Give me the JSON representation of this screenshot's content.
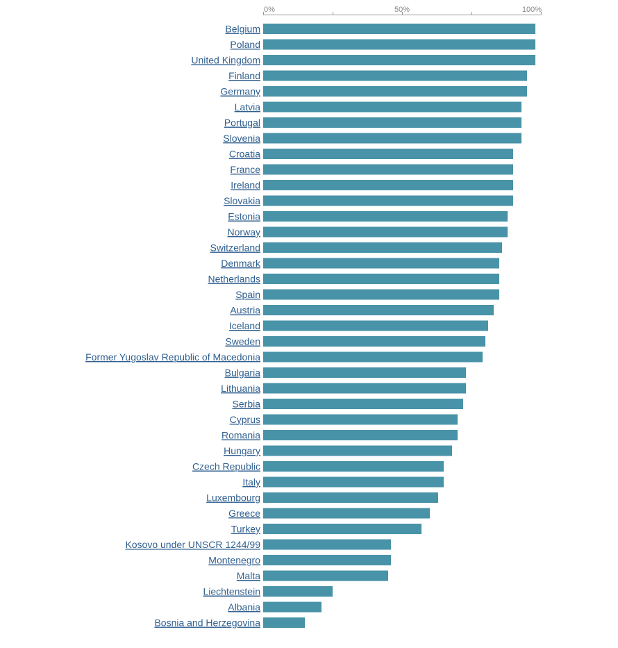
{
  "chart_data": {
    "type": "bar",
    "orientation": "horizontal",
    "title": "",
    "xlabel": "",
    "ylabel": "",
    "xlim": [
      0,
      100
    ],
    "ticks": [
      {
        "value": 0,
        "label": "0%"
      },
      {
        "value": 50,
        "label": "50%"
      },
      {
        "value": 100,
        "label": "100%"
      }
    ],
    "minor_ticks": [
      25,
      75
    ],
    "grid": false,
    "bar_color": "#4893a8",
    "label_color": "#2f5f8f",
    "categories": [
      "Belgium",
      "Poland",
      "United Kingdom",
      "Finland",
      "Germany",
      "Latvia",
      "Portugal",
      "Slovenia",
      "Croatia",
      "France",
      "Ireland",
      "Slovakia",
      "Estonia",
      "Norway",
      "Switzerland",
      "Denmark",
      "Netherlands",
      "Spain",
      "Austria",
      "Iceland",
      "Sweden",
      "Former Yugoslav Republic of Macedonia",
      "Bulgaria",
      "Lithuania",
      "Serbia",
      "Cyprus",
      "Romania",
      "Hungary",
      "Czech Republic",
      "Italy",
      "Luxembourg",
      "Greece",
      "Turkey",
      "Kosovo under UNSCR 1244/99",
      "Montenegro",
      "Malta",
      "Liechtenstein",
      "Albania",
      "Bosnia and Herzegovina"
    ],
    "values": [
      98,
      98,
      98,
      95,
      95,
      93,
      93,
      93,
      90,
      90,
      90,
      90,
      88,
      88,
      86,
      85,
      85,
      85,
      83,
      81,
      80,
      79,
      73,
      73,
      72,
      70,
      70,
      68,
      65,
      65,
      63,
      60,
      57,
      46,
      46,
      45,
      25,
      21,
      15
    ]
  }
}
